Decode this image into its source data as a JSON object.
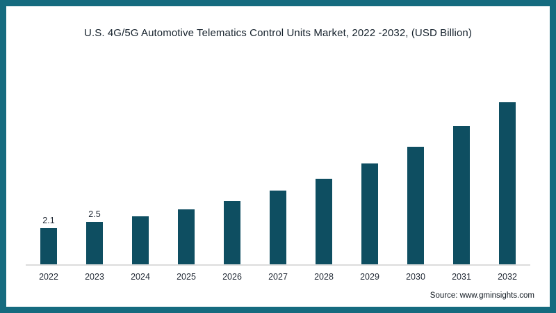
{
  "title": "U.S. 4G/5G Automotive Telematics Control Units Market, 2022 -2032, (USD Billion)",
  "source": "Source: www.gminsights.com",
  "colors": {
    "bar": "#0e4e61",
    "frame": "#156b7f",
    "axis_line": "#dcdcdc"
  },
  "chart_data": {
    "type": "bar",
    "title": "U.S. 4G/5G Automotive Telematics Control Units Market, 2022 -2032, (USD Billion)",
    "categories": [
      "2022",
      "2023",
      "2024",
      "2025",
      "2026",
      "2027",
      "2028",
      "2029",
      "2030",
      "2031",
      "2032"
    ],
    "values": [
      2.1,
      2.5,
      2.8,
      3.2,
      3.7,
      4.3,
      5.0,
      5.9,
      6.9,
      8.1,
      9.5
    ],
    "data_labels": [
      "2.1",
      "2.5",
      "",
      "",
      "",
      "",
      "",
      "",
      "",
      "",
      ""
    ],
    "xlabel": "",
    "ylabel": "USD Billion",
    "ylim": [
      0,
      11
    ],
    "grid": false,
    "legend": "none"
  }
}
